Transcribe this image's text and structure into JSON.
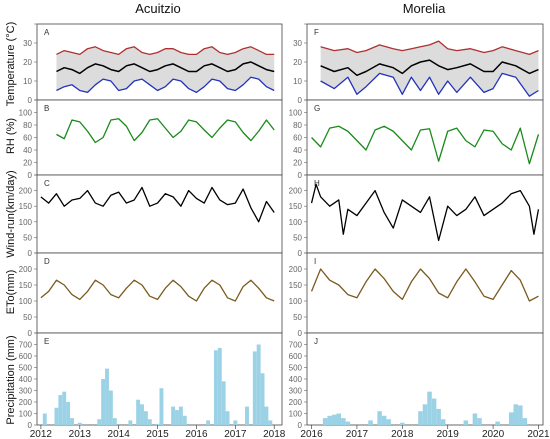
{
  "titles": [
    "Acuitzio",
    "Morelia"
  ],
  "row_labels": [
    "Temperature (°C)",
    "RH (%)",
    "Wind-run(km/day)",
    "ETo(mm)",
    "Precipitation (mm)"
  ],
  "panel_letters": [
    "A",
    "B",
    "C",
    "D",
    "E",
    "F",
    "G",
    "H",
    "I",
    "J"
  ],
  "colors": {
    "tmax": "#b03030",
    "tmean": "#000000",
    "tmin": "#2233bb",
    "band": "#dcdcdc",
    "rh": "#1a8a1a",
    "wind": "#000000",
    "eto": "#7a5a1e",
    "precip": "#9cd2e6"
  },
  "chart_data": [
    {
      "type": "line",
      "panel": "A",
      "ylabel": "Temperature (°C)",
      "ylim": [
        0,
        40
      ],
      "yticks": [
        0,
        10,
        20,
        30,
        40
      ],
      "x": [
        2012.4,
        2012.6,
        2012.8,
        2013.0,
        2013.2,
        2013.4,
        2013.6,
        2013.8,
        2014.0,
        2014.2,
        2014.4,
        2014.6,
        2014.8,
        2015.0,
        2015.2,
        2015.4,
        2015.6,
        2015.8,
        2016.0,
        2016.2,
        2016.4,
        2016.6,
        2016.8,
        2017.0,
        2017.2,
        2017.4,
        2017.6,
        2017.8,
        2018.0
      ],
      "series": [
        {
          "key": "tmax",
          "values": [
            24,
            26,
            25,
            24,
            27,
            28,
            26,
            25,
            24,
            27,
            28,
            25,
            24,
            25,
            27,
            27,
            25,
            24,
            24,
            27,
            28,
            25,
            24,
            25,
            27,
            28,
            26,
            24,
            24
          ]
        },
        {
          "key": "tmean",
          "values": [
            15,
            17,
            16,
            14,
            17,
            19,
            18,
            16,
            15,
            18,
            19,
            17,
            15,
            16,
            18,
            19,
            17,
            15,
            15,
            18,
            19,
            17,
            15,
            16,
            19,
            20,
            18,
            16,
            15
          ]
        },
        {
          "key": "tmin",
          "values": [
            5,
            7,
            8,
            5,
            4,
            8,
            11,
            10,
            5,
            6,
            10,
            11,
            8,
            5,
            7,
            11,
            10,
            6,
            4,
            7,
            11,
            10,
            6,
            5,
            8,
            12,
            11,
            7,
            5
          ]
        }
      ]
    },
    {
      "type": "line",
      "panel": "B",
      "ylabel": "RH (%)",
      "ylim": [
        0,
        120
      ],
      "yticks": [
        0,
        20,
        40,
        60,
        80,
        100,
        120
      ],
      "x": [
        2012.4,
        2012.6,
        2012.8,
        2013.0,
        2013.2,
        2013.4,
        2013.6,
        2013.8,
        2014.0,
        2014.2,
        2014.4,
        2014.6,
        2014.8,
        2015.0,
        2015.2,
        2015.4,
        2015.6,
        2015.8,
        2016.0,
        2016.2,
        2016.4,
        2016.6,
        2016.8,
        2017.0,
        2017.2,
        2017.4,
        2017.6,
        2017.8,
        2018.0
      ],
      "series": [
        {
          "key": "rh",
          "values": [
            65,
            58,
            88,
            85,
            70,
            52,
            60,
            88,
            90,
            78,
            55,
            68,
            88,
            90,
            75,
            60,
            70,
            88,
            85,
            72,
            60,
            75,
            88,
            85,
            68,
            55,
            70,
            88,
            72
          ]
        }
      ]
    },
    {
      "type": "line",
      "panel": "C",
      "ylim": [
        0,
        250
      ],
      "yticks": [
        0,
        50,
        100,
        150,
        200,
        250
      ],
      "x": [
        2012.0,
        2012.2,
        2012.4,
        2012.6,
        2012.8,
        2013.0,
        2013.2,
        2013.4,
        2013.6,
        2013.8,
        2014.0,
        2014.2,
        2014.4,
        2014.6,
        2014.8,
        2015.0,
        2015.2,
        2015.4,
        2015.6,
        2015.8,
        2016.0,
        2016.2,
        2016.4,
        2016.6,
        2016.8,
        2017.0,
        2017.2,
        2017.4,
        2017.6,
        2017.8,
        2018.0
      ],
      "series": [
        {
          "key": "wind",
          "values": [
            180,
            160,
            190,
            150,
            170,
            175,
            200,
            160,
            150,
            185,
            195,
            160,
            170,
            210,
            150,
            160,
            190,
            180,
            150,
            200,
            175,
            160,
            210,
            170,
            155,
            160,
            205,
            145,
            100,
            165,
            130
          ]
        }
      ]
    },
    {
      "type": "line",
      "panel": "D",
      "ylim": [
        0,
        250
      ],
      "yticks": [
        0,
        50,
        100,
        150,
        200,
        250
      ],
      "x": [
        2012.0,
        2012.2,
        2012.4,
        2012.6,
        2012.8,
        2013.0,
        2013.2,
        2013.4,
        2013.6,
        2013.8,
        2014.0,
        2014.2,
        2014.4,
        2014.6,
        2014.8,
        2015.0,
        2015.2,
        2015.4,
        2015.6,
        2015.8,
        2016.0,
        2016.2,
        2016.4,
        2016.6,
        2016.8,
        2017.0,
        2017.2,
        2017.4,
        2017.6,
        2017.8,
        2018.0
      ],
      "series": [
        {
          "key": "eto",
          "values": [
            110,
            130,
            165,
            150,
            120,
            105,
            130,
            165,
            150,
            120,
            110,
            140,
            165,
            150,
            115,
            105,
            140,
            165,
            145,
            115,
            100,
            140,
            165,
            150,
            110,
            100,
            145,
            165,
            140,
            110,
            100
          ]
        }
      ]
    },
    {
      "type": "bar",
      "panel": "E",
      "ylabel": "Precipitation (mm)",
      "ylim": [
        0,
        800
      ],
      "yticks": [
        0,
        100,
        200,
        300,
        400,
        500,
        600,
        700,
        800
      ],
      "x": [
        2012.1,
        2012.4,
        2012.5,
        2012.6,
        2012.7,
        2012.8,
        2013.0,
        2013.5,
        2013.6,
        2013.7,
        2013.8,
        2013.9,
        2014.3,
        2014.5,
        2014.6,
        2014.7,
        2014.8,
        2015.0,
        2015.1,
        2015.4,
        2015.5,
        2015.6,
        2015.7,
        2016.3,
        2016.5,
        2016.6,
        2016.7,
        2016.8,
        2017.0,
        2017.3,
        2017.5,
        2017.6,
        2017.7,
        2017.8,
        2017.9
      ],
      "series": [
        {
          "key": "precip",
          "values": [
            100,
            150,
            260,
            290,
            200,
            60,
            20,
            50,
            400,
            490,
            300,
            60,
            40,
            220,
            180,
            120,
            50,
            10,
            320,
            160,
            130,
            160,
            80,
            40,
            650,
            670,
            380,
            120,
            40,
            160,
            640,
            700,
            450,
            160,
            40
          ]
        }
      ]
    },
    {
      "type": "line",
      "panel": "F",
      "ylim": [
        0,
        40
      ],
      "yticks": [
        0,
        10,
        20,
        30,
        40
      ],
      "x": [
        2016.2,
        2016.5,
        2016.8,
        2017.0,
        2017.2,
        2017.5,
        2017.8,
        2018.0,
        2018.2,
        2018.4,
        2018.6,
        2018.8,
        2019.0,
        2019.2,
        2019.5,
        2019.8,
        2020.0,
        2020.2,
        2020.5,
        2020.8,
        2021.0
      ],
      "series": [
        {
          "key": "tmax",
          "values": [
            28,
            26,
            27,
            25,
            26,
            29,
            27,
            26,
            27,
            28,
            29,
            31,
            27,
            26,
            27,
            25,
            26,
            28,
            26,
            24,
            26
          ]
        },
        {
          "key": "tmean",
          "values": [
            18,
            15,
            17,
            13,
            15,
            19,
            17,
            14,
            18,
            20,
            21,
            18,
            16,
            17,
            19,
            15,
            15,
            20,
            18,
            14,
            16
          ]
        },
        {
          "key": "tmin",
          "values": [
            10,
            6,
            12,
            3,
            7,
            14,
            12,
            3,
            12,
            5,
            12,
            3,
            10,
            4,
            12,
            4,
            6,
            14,
            12,
            2,
            5
          ]
        }
      ]
    },
    {
      "type": "line",
      "panel": "G",
      "ylim": [
        0,
        120
      ],
      "yticks": [
        0,
        20,
        40,
        60,
        80,
        100,
        120
      ],
      "x": [
        2016.0,
        2016.2,
        2016.4,
        2016.6,
        2016.8,
        2017.0,
        2017.2,
        2017.4,
        2017.6,
        2017.8,
        2018.0,
        2018.2,
        2018.4,
        2018.6,
        2018.8,
        2019.0,
        2019.2,
        2019.4,
        2019.6,
        2019.8,
        2020.0,
        2020.2,
        2020.4,
        2020.6,
        2020.8,
        2021.0
      ],
      "series": [
        {
          "key": "rh",
          "values": [
            60,
            45,
            75,
            78,
            70,
            55,
            40,
            72,
            78,
            70,
            55,
            40,
            72,
            74,
            22,
            70,
            75,
            55,
            45,
            72,
            70,
            50,
            40,
            75,
            18,
            65
          ]
        }
      ]
    },
    {
      "type": "line",
      "panel": "H",
      "ylim": [
        0,
        250
      ],
      "yticks": [
        0,
        50,
        100,
        150,
        200,
        250
      ],
      "x": [
        2016.0,
        2016.1,
        2016.2,
        2016.4,
        2016.6,
        2016.7,
        2016.8,
        2017.0,
        2017.2,
        2017.4,
        2017.6,
        2017.8,
        2018.0,
        2018.2,
        2018.4,
        2018.6,
        2018.8,
        2019.0,
        2019.2,
        2019.4,
        2019.6,
        2019.8,
        2020.0,
        2020.2,
        2020.4,
        2020.6,
        2020.8,
        2020.9,
        2021.0
      ],
      "series": [
        {
          "key": "wind",
          "values": [
            160,
            220,
            180,
            150,
            170,
            60,
            140,
            120,
            160,
            200,
            130,
            80,
            170,
            150,
            130,
            180,
            40,
            150,
            120,
            140,
            180,
            120,
            140,
            160,
            190,
            200,
            150,
            60,
            140
          ]
        }
      ]
    },
    {
      "type": "line",
      "panel": "I",
      "ylim": [
        0,
        250
      ],
      "yticks": [
        0,
        50,
        100,
        150,
        200,
        250
      ],
      "x": [
        2016.0,
        2016.2,
        2016.4,
        2016.6,
        2016.8,
        2017.0,
        2017.2,
        2017.4,
        2017.6,
        2017.8,
        2018.0,
        2018.2,
        2018.4,
        2018.6,
        2018.8,
        2019.0,
        2019.2,
        2019.4,
        2019.6,
        2019.8,
        2020.0,
        2020.2,
        2020.4,
        2020.6,
        2020.8,
        2021.0
      ],
      "series": [
        {
          "key": "eto",
          "values": [
            130,
            200,
            165,
            150,
            120,
            110,
            160,
            200,
            170,
            130,
            105,
            160,
            200,
            170,
            125,
            110,
            160,
            200,
            160,
            115,
            105,
            150,
            195,
            165,
            100,
            115
          ]
        }
      ]
    },
    {
      "type": "bar",
      "panel": "J",
      "ylim": [
        0,
        800
      ],
      "yticks": [
        0,
        100,
        200,
        300,
        400,
        500,
        600,
        700,
        800
      ],
      "x": [
        2016.3,
        2016.4,
        2016.5,
        2016.6,
        2016.7,
        2016.8,
        2017.3,
        2017.5,
        2017.6,
        2017.7,
        2018.0,
        2018.4,
        2018.5,
        2018.6,
        2018.7,
        2018.8,
        2018.9,
        2019.4,
        2019.6,
        2019.7,
        2020.1,
        2020.4,
        2020.5,
        2020.6,
        2020.7
      ],
      "series": [
        {
          "key": "precip",
          "values": [
            60,
            80,
            90,
            100,
            60,
            30,
            40,
            120,
            80,
            50,
            20,
            120,
            180,
            290,
            230,
            140,
            50,
            40,
            100,
            60,
            30,
            110,
            180,
            170,
            60
          ]
        }
      ]
    }
  ],
  "x_axes": [
    {
      "ticks": [
        2012,
        2013,
        2014,
        2015,
        2016,
        2017,
        2018
      ],
      "labels": [
        "2012",
        "2013",
        "2014",
        "2015",
        "2016",
        "2017",
        "2018"
      ]
    },
    {
      "ticks": [
        2016,
        2017,
        2018,
        2019,
        2020,
        2021
      ],
      "labels": [
        "2016",
        "2017",
        "2018",
        "2019",
        "2020",
        "2021"
      ]
    }
  ]
}
